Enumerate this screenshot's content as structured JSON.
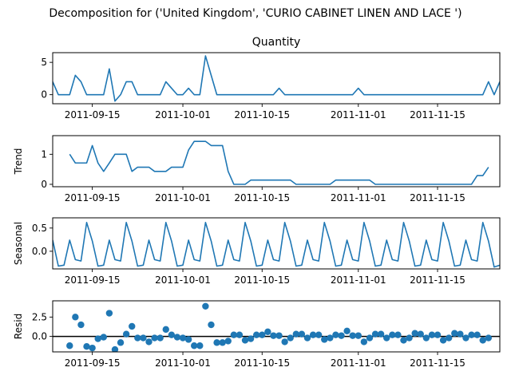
{
  "figure": {
    "suptitle": "Decomposition for ('United Kingdom', 'CURIO CABINET LINEN AND LACE ')",
    "line_color": "#1f77b4",
    "zero_line_color": "#000000"
  },
  "chart_data": [
    {
      "type": "line",
      "title": "Quantity",
      "ylabel": "",
      "x_start": "2011-09-08",
      "x_end": "2011-11-26",
      "ylim": [
        -1.4,
        6.5
      ],
      "yticks": [
        0,
        5
      ],
      "xtick_labels": [
        "2011-09-15",
        "2011-10-01",
        "2011-10-15",
        "2011-11-01",
        "2011-11-15"
      ],
      "values": [
        2,
        0,
        0,
        0,
        3,
        2,
        0,
        0,
        0,
        0,
        4,
        -1,
        0,
        2,
        2,
        0,
        0,
        0,
        0,
        0,
        2,
        1,
        0,
        0,
        1,
        0,
        0,
        6,
        3,
        0,
        0,
        0,
        0,
        0,
        0,
        0,
        0,
        0,
        0,
        0,
        1,
        0,
        0,
        0,
        0,
        0,
        0,
        0,
        0,
        0,
        0,
        0,
        0,
        0,
        1,
        0,
        0,
        0,
        0,
        0,
        0,
        0,
        0,
        0,
        0,
        0,
        0,
        0,
        0,
        0,
        0,
        0,
        0,
        0,
        0,
        0,
        0,
        2,
        0,
        2
      ]
    },
    {
      "type": "line",
      "title": "",
      "ylabel": "Trend",
      "x_start": "2011-09-08",
      "x_end": "2011-11-26",
      "ylim": [
        -0.08,
        1.62
      ],
      "yticks": [
        0,
        1
      ],
      "xtick_labels": [
        "2011-09-15",
        "2011-10-01",
        "2011-10-15",
        "2011-11-01",
        "2011-11-15"
      ],
      "values": [
        null,
        null,
        null,
        1.0,
        0.71,
        0.71,
        0.71,
        1.29,
        0.71,
        0.43,
        0.71,
        1.0,
        1.0,
        1.0,
        0.43,
        0.57,
        0.57,
        0.57,
        0.43,
        0.43,
        0.43,
        0.57,
        0.57,
        0.57,
        1.14,
        1.43,
        1.43,
        1.43,
        1.29,
        1.29,
        1.29,
        0.43,
        0.0,
        0.0,
        0.0,
        0.14,
        0.14,
        0.14,
        0.14,
        0.14,
        0.14,
        0.14,
        0.14,
        0.0,
        0.0,
        0.0,
        0.0,
        0.0,
        0.0,
        0.0,
        0.14,
        0.14,
        0.14,
        0.14,
        0.14,
        0.14,
        0.14,
        0.0,
        0.0,
        0.0,
        0.0,
        0.0,
        0.0,
        0.0,
        0.0,
        0.0,
        0.0,
        0.0,
        0.0,
        0.0,
        0.0,
        0.0,
        0.0,
        0.0,
        0.0,
        0.29,
        0.29,
        0.57,
        null,
        null
      ]
    },
    {
      "type": "line",
      "title": "",
      "ylabel": "Seasonal",
      "x_start": "2011-09-08",
      "x_end": "2011-11-26",
      "ylim": [
        -0.38,
        0.72
      ],
      "yticks": [
        0.0,
        0.5
      ],
      "ytick_labels": [
        "0.0",
        "0.5"
      ],
      "xtick_labels": [
        "2011-09-15",
        "2011-10-01",
        "2011-10-15",
        "2011-11-01",
        "2011-11-15"
      ],
      "values": [
        0.24,
        -0.32,
        -0.3,
        0.24,
        -0.18,
        -0.21,
        0.62,
        0.22,
        -0.32,
        -0.3,
        0.24,
        -0.18,
        -0.21,
        0.62,
        0.22,
        -0.32,
        -0.3,
        0.24,
        -0.18,
        -0.21,
        0.62,
        0.22,
        -0.32,
        -0.3,
        0.24,
        -0.18,
        -0.21,
        0.62,
        0.22,
        -0.32,
        -0.3,
        0.24,
        -0.18,
        -0.21,
        0.62,
        0.22,
        -0.32,
        -0.3,
        0.24,
        -0.18,
        -0.21,
        0.62,
        0.22,
        -0.32,
        -0.3,
        0.24,
        -0.18,
        -0.21,
        0.62,
        0.22,
        -0.32,
        -0.3,
        0.24,
        -0.18,
        -0.21,
        0.62,
        0.22,
        -0.32,
        -0.3,
        0.24,
        -0.18,
        -0.21,
        0.62,
        0.22,
        -0.32,
        -0.3,
        0.24,
        -0.18,
        -0.21,
        0.62,
        0.22,
        -0.32,
        -0.3,
        0.24,
        -0.18,
        -0.21,
        0.62,
        0.22,
        -0.34,
        -0.3
      ]
    },
    {
      "type": "scatter",
      "title": "",
      "ylabel": "Resid",
      "x_start": "2011-09-08",
      "x_end": "2011-11-26",
      "ylim": [
        -2.0,
        4.6
      ],
      "yticks": [
        0.0,
        2.5
      ],
      "ytick_labels": [
        "0.0",
        "2.5"
      ],
      "xtick_labels": [
        "2011-09-15",
        "2011-10-01",
        "2011-10-15",
        "2011-11-01",
        "2011-11-15"
      ],
      "zero_line": 0,
      "values": [
        null,
        null,
        null,
        -1.2,
        2.5,
        1.5,
        -1.3,
        -1.5,
        -0.3,
        -0.1,
        3.0,
        -1.7,
        -0.8,
        0.3,
        1.3,
        -0.2,
        -0.2,
        -0.7,
        -0.2,
        -0.2,
        0.9,
        0.2,
        -0.1,
        -0.2,
        -0.4,
        -1.2,
        -1.2,
        3.9,
        1.5,
        -0.8,
        -0.8,
        -0.6,
        0.2,
        0.2,
        -0.5,
        -0.3,
        0.2,
        0.2,
        0.6,
        0.1,
        0.1,
        -0.7,
        -0.2,
        0.3,
        0.3,
        -0.2,
        0.2,
        0.2,
        -0.4,
        -0.2,
        0.2,
        0.1,
        0.7,
        0.1,
        0.1,
        -0.7,
        -0.2,
        0.3,
        0.3,
        -0.2,
        0.2,
        0.2,
        -0.5,
        -0.2,
        0.4,
        0.3,
        -0.2,
        0.2,
        0.2,
        -0.5,
        -0.2,
        0.4,
        0.3,
        -0.2,
        0.2,
        0.2,
        -0.5,
        -0.2,
        null,
        null
      ]
    }
  ]
}
